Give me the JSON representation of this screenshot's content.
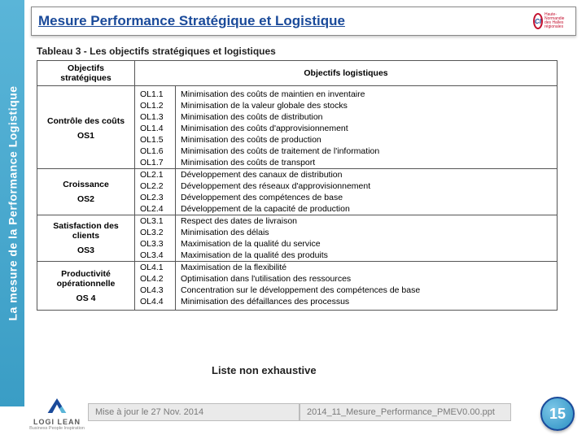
{
  "leftBand": "La mesure de la Performance Logistique",
  "header": {
    "title": "Mesure Performance Stratégique et Logistique",
    "cciAbbr": "CI",
    "cciSub": "Haute-Normandie des Halles régionales"
  },
  "table": {
    "caption": "Tableau 3 - Les objectifs stratégiques et logistiques",
    "head": {
      "strategic": "Objectifs stratégiques",
      "logistic": "Objectifs logistiques"
    },
    "sections": [
      {
        "strategic": "Contrôle des coûts",
        "osCode": "OS1",
        "items": [
          {
            "code": "OL1.1",
            "desc": "Minimisation des coûts de maintien en inventaire"
          },
          {
            "code": "OL1.2",
            "desc": "Minimisation de la valeur globale des stocks"
          },
          {
            "code": "OL1.3",
            "desc": "Minimisation des coûts de distribution"
          },
          {
            "code": "OL1.4",
            "desc": "Minimisation des coûts d'approvisionnement"
          },
          {
            "code": "OL1.5",
            "desc": "Minimisation des coûts de production"
          },
          {
            "code": "OL1.6",
            "desc": "Minimisation des coûts de traitement de l'information"
          },
          {
            "code": "OL1.7",
            "desc": "Minimisation des coûts de transport"
          }
        ]
      },
      {
        "strategic": "Croissance",
        "osCode": "OS2",
        "items": [
          {
            "code": "OL2.1",
            "desc": "Développement des canaux de distribution"
          },
          {
            "code": "OL2.2",
            "desc": "Développement des réseaux d'approvisionnement"
          },
          {
            "code": "OL2.3",
            "desc": "Développement des compétences de base"
          },
          {
            "code": "OL2.4",
            "desc": "Développement de la capacité de production"
          }
        ]
      },
      {
        "strategic": "Satisfaction des clients",
        "osCode": "OS3",
        "items": [
          {
            "code": "OL3.1",
            "desc": "Respect des dates de livraison"
          },
          {
            "code": "OL3.2",
            "desc": "Minimisation des délais"
          },
          {
            "code": "OL3.3",
            "desc": "Maximisation de la qualité du service"
          },
          {
            "code": "OL3.4",
            "desc": "Maximisation de la qualité des produits"
          }
        ]
      },
      {
        "strategic": "Productivité opérationnelle",
        "osCode": "OS 4",
        "items": [
          {
            "code": "OL4.1",
            "desc": "Maximisation de la flexibilité"
          },
          {
            "code": "OL4.2",
            "desc": "Optimisation dans l'utilisation des ressources"
          },
          {
            "code": "OL4.3",
            "desc": "Concentration sur le développement des compétences de base"
          },
          {
            "code": "OL4.4",
            "desc": "Minimisation des défaillances des processus"
          }
        ]
      }
    ]
  },
  "subCaption": "Liste non exhaustive",
  "footer": {
    "left": "Mise à jour le 27 Nov. 2014",
    "right": "2014_11_Mesure_Performance_PMEV0.00.ppt"
  },
  "logilean": {
    "brand": "LOGI LEAN",
    "tag": "Business People Inspiration"
  },
  "pageNumber": "15"
}
